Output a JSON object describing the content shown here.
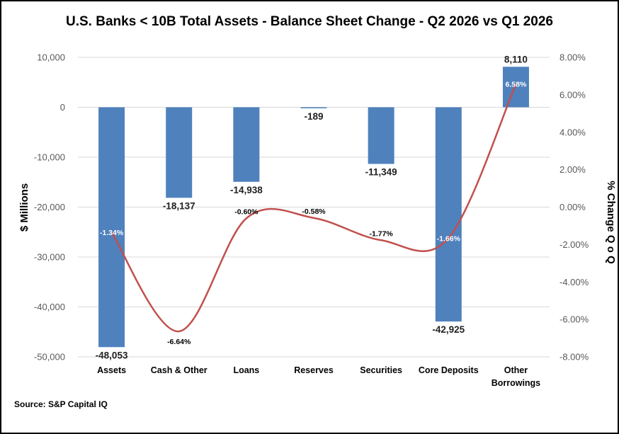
{
  "chart_data": {
    "type": "bar",
    "title": "U.S. Banks < 10B Total Assets - Balance Sheet Change - Q2 2026 vs Q1 2026",
    "source": "Source: S&P Capital IQ",
    "categories": [
      "Assets",
      "Cash & Other",
      "Loans",
      "Reserves",
      "Securities",
      "Core Deposits",
      "Other Borrowings"
    ],
    "y_left": {
      "label": "$ Millions",
      "ylim": [
        -50000,
        10000
      ],
      "ticks": [
        10000,
        0,
        -10000,
        -20000,
        -30000,
        -40000,
        -50000
      ],
      "tick_labels": [
        "10,000",
        "0",
        "-10,000",
        "-20,000",
        "-30,000",
        "-40,000",
        "-50,000"
      ]
    },
    "y_right": {
      "label": "% Change Q o Q",
      "ylim": [
        -8,
        8
      ],
      "ticks": [
        8,
        6,
        4,
        2,
        0,
        -2,
        -4,
        -6,
        -8
      ],
      "tick_labels": [
        "8.00%",
        "6.00%",
        "4.00%",
        "2.00%",
        "0.00%",
        "-2.00%",
        "-4.00%",
        "-6.00%",
        "-8.00%"
      ]
    },
    "gridlines": true,
    "series": [
      {
        "type": "bar",
        "axis": "left",
        "color": "#4f81bd",
        "values": [
          -48053,
          -18137,
          -14938,
          -189,
          -11349,
          -42925,
          8110
        ],
        "labels": [
          "-48,053",
          "-18,137",
          "-14,938",
          "-189",
          "-11,349",
          "-42,925",
          "8,110"
        ]
      },
      {
        "type": "line",
        "axis": "right",
        "color": "#c0504d",
        "smooth": true,
        "values": [
          -1.34,
          -6.64,
          -0.6,
          -0.58,
          -1.77,
          -1.66,
          6.58
        ],
        "labels": [
          "-1.34%",
          "-6.64%",
          "-0.60%",
          "-0.58%",
          "-1.77%",
          "-1.66%",
          "6.58%"
        ]
      }
    ]
  }
}
